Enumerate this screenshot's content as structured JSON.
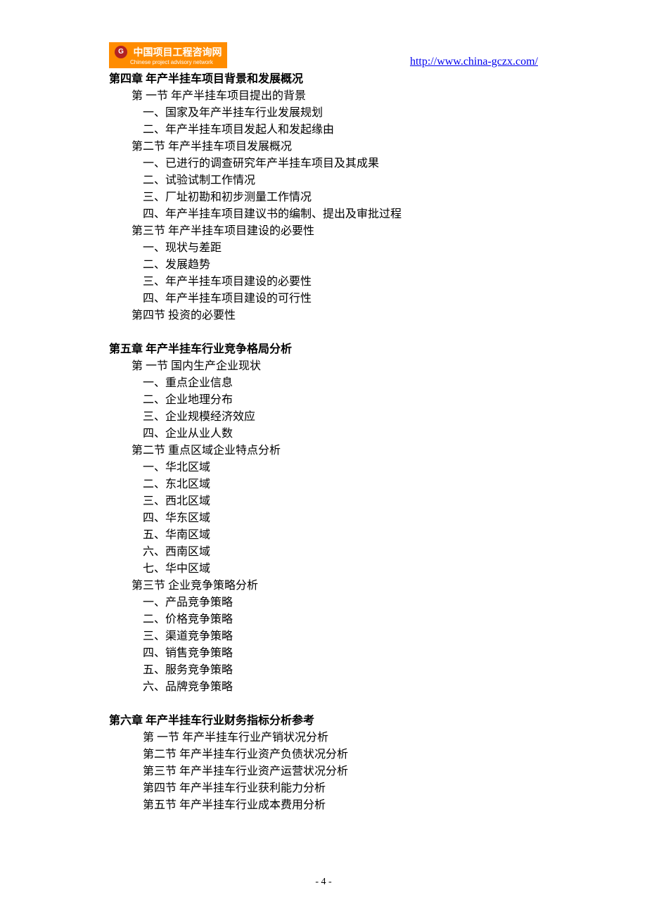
{
  "header": {
    "logo_cn": "中国项目工程咨询网",
    "logo_en": "Chinese project advisory network",
    "logo_badge": "G",
    "url": "http://www.china-gczx.com/"
  },
  "chapters": [
    {
      "title": "第四章  年产半挂车项目背景和发展概况",
      "sections": [
        {
          "title": "第 一节  年产半挂车项目提出的背景",
          "items": [
            "一、国家及年产半挂车行业发展规划",
            "二、年产半挂车项目发起人和发起缘由"
          ]
        },
        {
          "title": "第二节  年产半挂车项目发展概况",
          "items": [
            "一、已进行的调查研究年产半挂车项目及其成果",
            "二、试验试制工作情况",
            "三、厂址初勘和初步测量工作情况",
            "四、年产半挂车项目建议书的编制、提出及审批过程"
          ]
        },
        {
          "title": "第三节  年产半挂车项目建设的必要性",
          "items": [
            "一、现状与差距",
            "二、发展趋势",
            "三、年产半挂车项目建设的必要性",
            "四、年产半挂车项目建设的可行性"
          ]
        },
        {
          "title": "第四节   投资的必要性",
          "items": []
        }
      ]
    },
    {
      "title": "第五章  年产半挂车行业竞争格局分析",
      "sections": [
        {
          "title": "第 一节   国内生产企业现状",
          "items": [
            "一、重点企业信息",
            "二、企业地理分布",
            "三、企业规模经济效应",
            "四、企业从业人数"
          ]
        },
        {
          "title": "第二节   重点区域企业特点分析",
          "items": [
            "一、华北区域",
            "二、东北区域",
            "三、西北区域",
            "四、华东区域",
            "五、华南区域",
            "六、西南区域",
            "七、华中区域"
          ]
        },
        {
          "title": "第三节   企业竞争策略分析",
          "items": [
            "一、产品竞争策略",
            "二、价格竞争策略",
            "三、渠道竞争策略",
            "四、销售竞争策略",
            "五、服务竞争策略",
            "六、品牌竞争策略"
          ]
        }
      ]
    },
    {
      "title": "第六章  年产半挂车行业财务指标分析参考",
      "sub_sections": [
        "第 一节  年产半挂车行业产销状况分析",
        "第二节  年产半挂车行业资产负债状况分析",
        "第三节  年产半挂车行业资产运营状况分析",
        "第四节  年产半挂车行业获利能力分析",
        "第五节  年产半挂车行业成本费用分析"
      ]
    }
  ],
  "page_number": "- 4 -"
}
